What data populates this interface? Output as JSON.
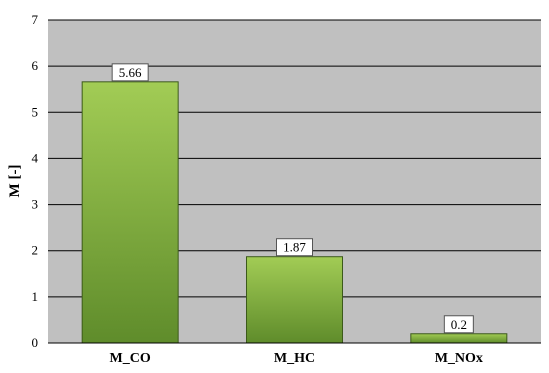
{
  "chart_data": {
    "type": "bar",
    "title": "",
    "xlabel": "",
    "ylabel": "M [-]",
    "ylim": [
      0,
      7
    ],
    "yticks": [
      0,
      1,
      2,
      3,
      4,
      5,
      6,
      7
    ],
    "categories": [
      "M_CO",
      "M_HC",
      "M_NOx"
    ],
    "values": [
      5.66,
      1.87,
      0.2
    ],
    "data_labels": [
      "5.66",
      "1.87",
      "0.2"
    ],
    "grid": true,
    "legend": "none"
  },
  "colors": {
    "plot_background": "#c0c0c0",
    "bar_top": "#a2cc55",
    "bar_bottom": "#5f8c2b",
    "bar_border": "#3c5a1a",
    "gridline": "#000000"
  }
}
